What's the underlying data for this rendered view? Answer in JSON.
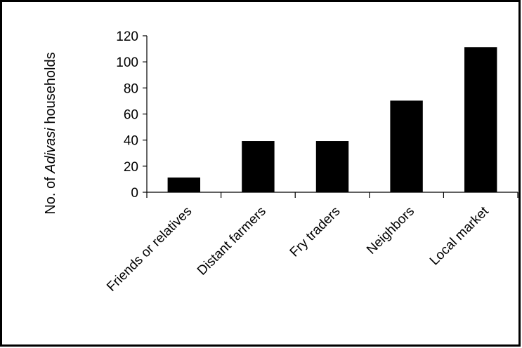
{
  "chart_data": {
    "type": "bar",
    "categories": [
      "Friends or relatives",
      "Distant farmers",
      "Fry traders",
      "Neighbors",
      "Local market"
    ],
    "values": [
      11,
      39,
      39,
      70,
      111
    ],
    "ylabel_prefix": "No. of ",
    "ylabel_emphasis": "Adivasi",
    "ylabel_suffix": " households",
    "ylim": [
      0,
      120
    ],
    "yticks": [
      0,
      20,
      40,
      60,
      80,
      100,
      120
    ],
    "grid": false,
    "bar_color": "#000000"
  }
}
